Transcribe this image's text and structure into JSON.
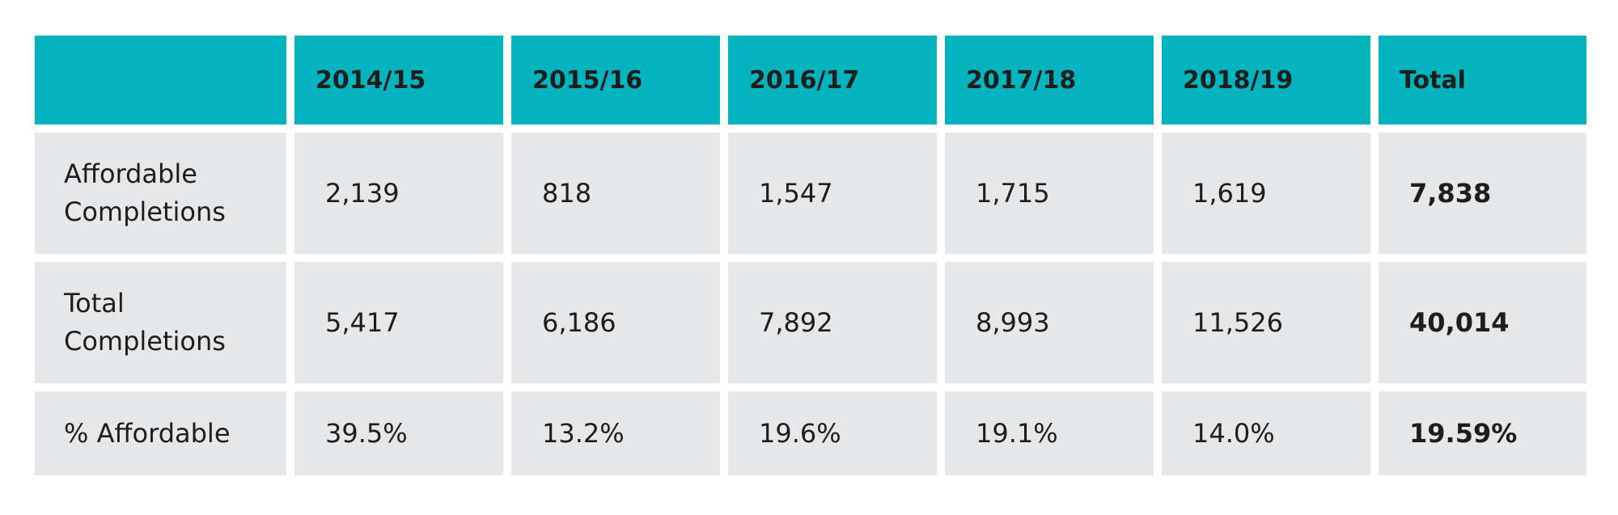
{
  "chart_data": {
    "type": "table",
    "columns": [
      "",
      "2014/15",
      "2015/16",
      "2016/17",
      "2017/18",
      "2018/19",
      "Total"
    ],
    "rows": [
      {
        "label_lines": [
          "Affordable",
          "Completions"
        ],
        "values": [
          "2,139",
          "818",
          "1,547",
          "1,715",
          "1,619",
          "7,838"
        ]
      },
      {
        "label_lines": [
          "Total",
          "Completions"
        ],
        "values": [
          "5,417",
          "6,186",
          "7,892",
          "8,993",
          "11,526",
          "40,014"
        ]
      },
      {
        "label_lines": [
          "% Affordable"
        ],
        "values": [
          "39.5%",
          "13.2%",
          "19.6%",
          "19.1%",
          "14.0%",
          "19.59%"
        ]
      }
    ],
    "colors": {
      "header_background": "#03b3bd",
      "body_background": "#e6e7e9",
      "text": "#1d1d1d"
    }
  }
}
